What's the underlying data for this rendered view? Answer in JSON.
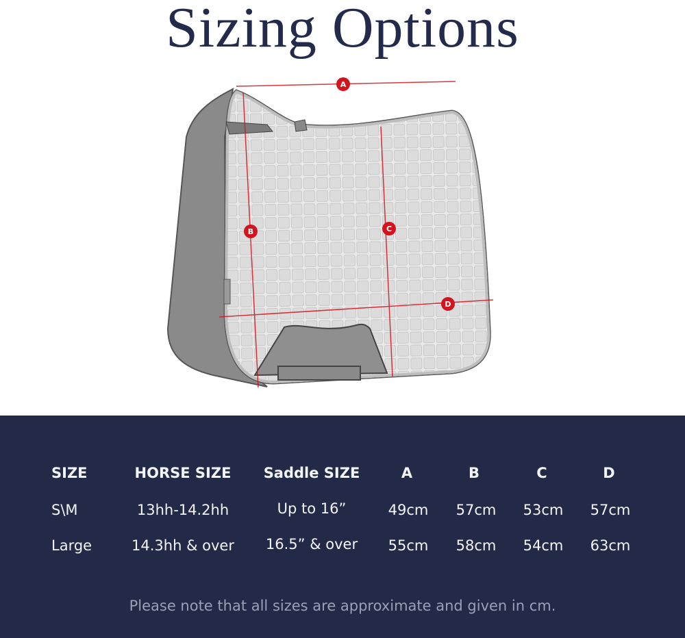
{
  "title": "Sizing Options",
  "diagram": {
    "markers": [
      "A",
      "B",
      "C",
      "D"
    ],
    "accent_color": "#d2141e"
  },
  "table": {
    "headers": [
      "SIZE",
      "HORSE SIZE",
      "Saddle SIZE",
      "A",
      "B",
      "C",
      "D"
    ],
    "rows": [
      [
        "S\\M",
        "13hh-14.2hh",
        "Up to 16”",
        "49cm",
        "57cm",
        "53cm",
        "57cm"
      ],
      [
        "Large",
        "14.3hh & over",
        "16.5” & over",
        "55cm",
        "58cm",
        "54cm",
        "63cm"
      ]
    ]
  },
  "note": "Please note that all sizes are approximate and given in cm.",
  "colors": {
    "panel": "#222a48",
    "title": "#232a4a",
    "note": "#9aa0b6"
  }
}
